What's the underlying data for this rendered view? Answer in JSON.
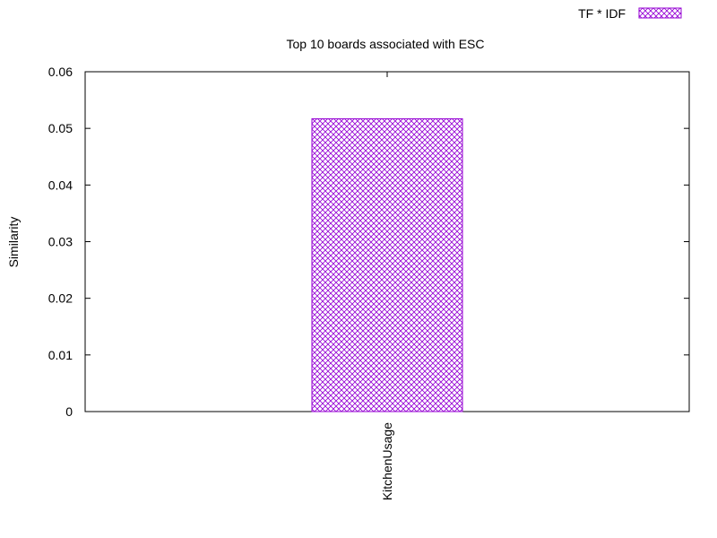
{
  "chart_data": {
    "type": "bar",
    "title": "Top 10 boards associated with ESC",
    "xlabel": "",
    "ylabel": "Similarity",
    "categories": [
      "KitchenUsage"
    ],
    "series": [
      {
        "name": "TF * IDF",
        "values": [
          0.0517
        ]
      }
    ],
    "ylim": [
      0,
      0.06
    ],
    "yticks": [
      "0",
      "0.01",
      "0.02",
      "0.03",
      "0.04",
      "0.05",
      "0.06"
    ],
    "grid": false,
    "legend_position": "top-right",
    "bar_color": "#9400d3",
    "bar_fill": "crosshatch"
  }
}
